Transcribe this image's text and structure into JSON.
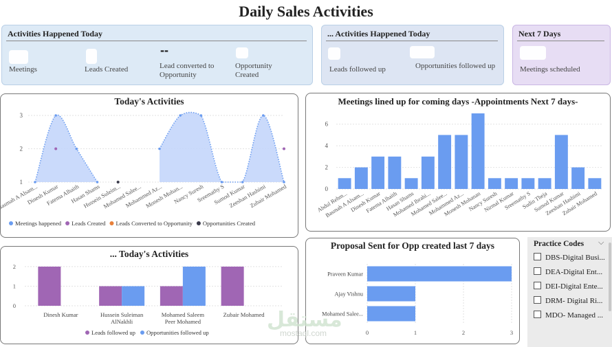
{
  "page": {
    "title": "Daily Sales Activities"
  },
  "kpi_today": {
    "title": "Activities Happened Today",
    "items": [
      {
        "label": "Meetings"
      },
      {
        "label": "Leads Created"
      },
      {
        "label": "Lead converted to Opportunity",
        "value": "--"
      },
      {
        "label": "Opportunity Created"
      }
    ]
  },
  "kpi_followed": {
    "title": "... Activities Happened Today",
    "items": [
      {
        "label": "Leads followed up"
      },
      {
        "label": "Opportunities followed up"
      }
    ]
  },
  "kpi_next": {
    "title": "Next 7 Days",
    "items": [
      {
        "label": "Meetings scheduled"
      }
    ]
  },
  "slicer": {
    "title": "Practice Codes",
    "items": [
      "DBS-Digital Busi...",
      "DEA-Digital Ent...",
      "DEI-Digital Ente...",
      "DRM- Digital Ri...",
      "MDO- Managed ..."
    ]
  },
  "watermark": {
    "text": "mostaql.com"
  },
  "colors": {
    "blue": "#6a9cf0",
    "purple": "#a066b4",
    "orange": "#e8803a",
    "dark": "#3a3a4a",
    "area": "#c4d6fb"
  },
  "chart_data": [
    {
      "id": "todays_activities",
      "type": "area",
      "title": "Today's Activities",
      "categories": [
        "Basmah A Alsam...",
        "Dinesh Kumar",
        "Fatema Alhaith",
        "Hasan Shams",
        "Hussein Suleim...",
        "Mohamed Salee...",
        "Mohammed Az...",
        "Monesh Mohan...",
        "Nancy Suresh",
        "Sreemathy S",
        "Sumod Kumar",
        "Zeeshan Hashimi",
        "Zubair Mohamed"
      ],
      "ylim": [
        1,
        3
      ],
      "yticks": [
        1,
        2,
        3
      ],
      "series": [
        {
          "name": "Meetings happened",
          "values": [
            1,
            3,
            2,
            1,
            null,
            null,
            2,
            3,
            3,
            1,
            1,
            3,
            1
          ]
        },
        {
          "name": "Leads Created",
          "values": [
            null,
            2,
            null,
            null,
            null,
            null,
            null,
            null,
            null,
            null,
            null,
            null,
            2
          ]
        },
        {
          "name": "Leads Converted to Opportunity",
          "values": [
            null,
            null,
            null,
            null,
            null,
            null,
            null,
            null,
            null,
            null,
            null,
            null,
            null
          ]
        },
        {
          "name": "Opportunities Created",
          "values": [
            null,
            null,
            null,
            null,
            1,
            null,
            null,
            null,
            null,
            null,
            null,
            null,
            null
          ]
        }
      ],
      "legend": "bottom"
    },
    {
      "id": "meetings_next_7",
      "type": "bar",
      "title": "Meetings lined up for coming days -Appointments Next 7 days-",
      "categories": [
        "Abdul Rehm...",
        "Basmah A Alsam...",
        "Dinesh Kumar",
        "Fatema Alhaith",
        "Hasan Shams",
        "Mohamed Ibrahi...",
        "Mohamed Salee...",
        "Mohammed Az...",
        "Monesh Mohanan",
        "Nancy Suresh",
        "Nirmal Kumar",
        "Sreemathy S",
        "Sudin Theja",
        "Sumod Kumar",
        "Zeeshan Hashimi",
        "Zubair Mohamed"
      ],
      "values": [
        1,
        2,
        3,
        3,
        1,
        3,
        5,
        5,
        7,
        1,
        1,
        1,
        1,
        5,
        2,
        1
      ],
      "ylim": [
        0,
        7
      ],
      "yticks": [
        0,
        2,
        4,
        6
      ]
    },
    {
      "id": "followed_today",
      "type": "bar",
      "title": "... Today's Activities",
      "categories": [
        "Dinesh Kumar",
        "Hussein Suleiman AlNakhli",
        "Mohamed Saleem Peer Mohamed",
        "Zubair Mohamed"
      ],
      "series": [
        {
          "name": "Leads followed up",
          "values": [
            2,
            1,
            1,
            2
          ]
        },
        {
          "name": "Opportunities followed up",
          "values": [
            0,
            1,
            2,
            0
          ]
        }
      ],
      "ylim": [
        0,
        2
      ],
      "yticks": [
        0,
        1,
        2
      ],
      "legend": "bottom"
    },
    {
      "id": "proposal_sent",
      "type": "bar",
      "orientation": "horizontal",
      "title": "Proposal Sent for Opp created last 7 days",
      "categories": [
        "Praveen Kumar",
        "Ajay Vishnu",
        "Mohamed Salee..."
      ],
      "values": [
        3,
        1,
        1
      ],
      "xlim": [
        0,
        3
      ],
      "xticks": [
        0,
        1,
        2,
        3
      ]
    }
  ]
}
